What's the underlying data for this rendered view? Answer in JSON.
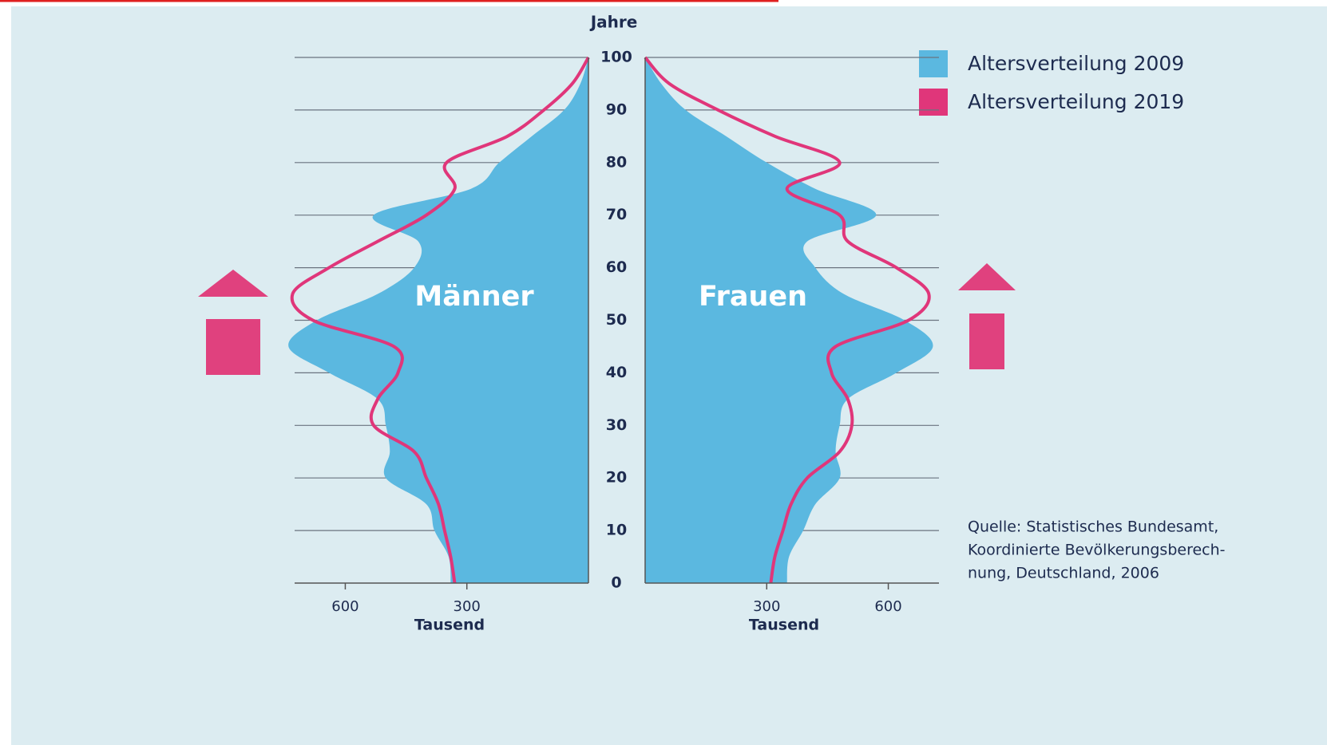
{
  "chart_data": {
    "type": "pyramid",
    "y_label": "Jahre",
    "x_label": "Tausend",
    "groups": [
      "Männer",
      "Frauen"
    ],
    "x": [
      0,
      5,
      10,
      15,
      20,
      25,
      30,
      35,
      40,
      45,
      50,
      55,
      60,
      65,
      70,
      75,
      80,
      85,
      90,
      95,
      100
    ],
    "series": [
      {
        "name": "Altersverteilung 2009",
        "color": "#5bb8e0",
        "values": [
          [
            340,
            345,
            380,
            400,
            500,
            490,
            500,
            520,
            640,
            740,
            670,
            520,
            430,
            420,
            530,
            290,
            220,
            140,
            60,
            20,
            0
          ],
          [
            350,
            355,
            390,
            420,
            480,
            470,
            480,
            500,
            620,
            710,
            640,
            490,
            420,
            400,
            570,
            420,
            300,
            200,
            100,
            40,
            0
          ]
        ]
      },
      {
        "name": "Altersverteilung 2019",
        "color": "#e0367a",
        "values": [
          [
            330,
            340,
            355,
            370,
            400,
            430,
            530,
            520,
            470,
            480,
            680,
            730,
            640,
            520,
            400,
            330,
            350,
            200,
            110,
            40,
            0
          ],
          [
            310,
            320,
            340,
            360,
            400,
            480,
            510,
            500,
            460,
            470,
            650,
            700,
            620,
            500,
            480,
            350,
            480,
            320,
            180,
            60,
            0
          ]
        ]
      }
    ],
    "ylim": [
      0,
      100
    ],
    "yticks": [
      0,
      10,
      20,
      30,
      40,
      50,
      60,
      70,
      80,
      90,
      100
    ],
    "xlim": [
      0,
      725
    ],
    "xticks": [
      300,
      600
    ],
    "source": [
      "Quelle: Statistisches Bundesamt,",
      "Koordinierte Bevölkerungsberech-",
      "nung, Deutschland, 2006"
    ]
  }
}
